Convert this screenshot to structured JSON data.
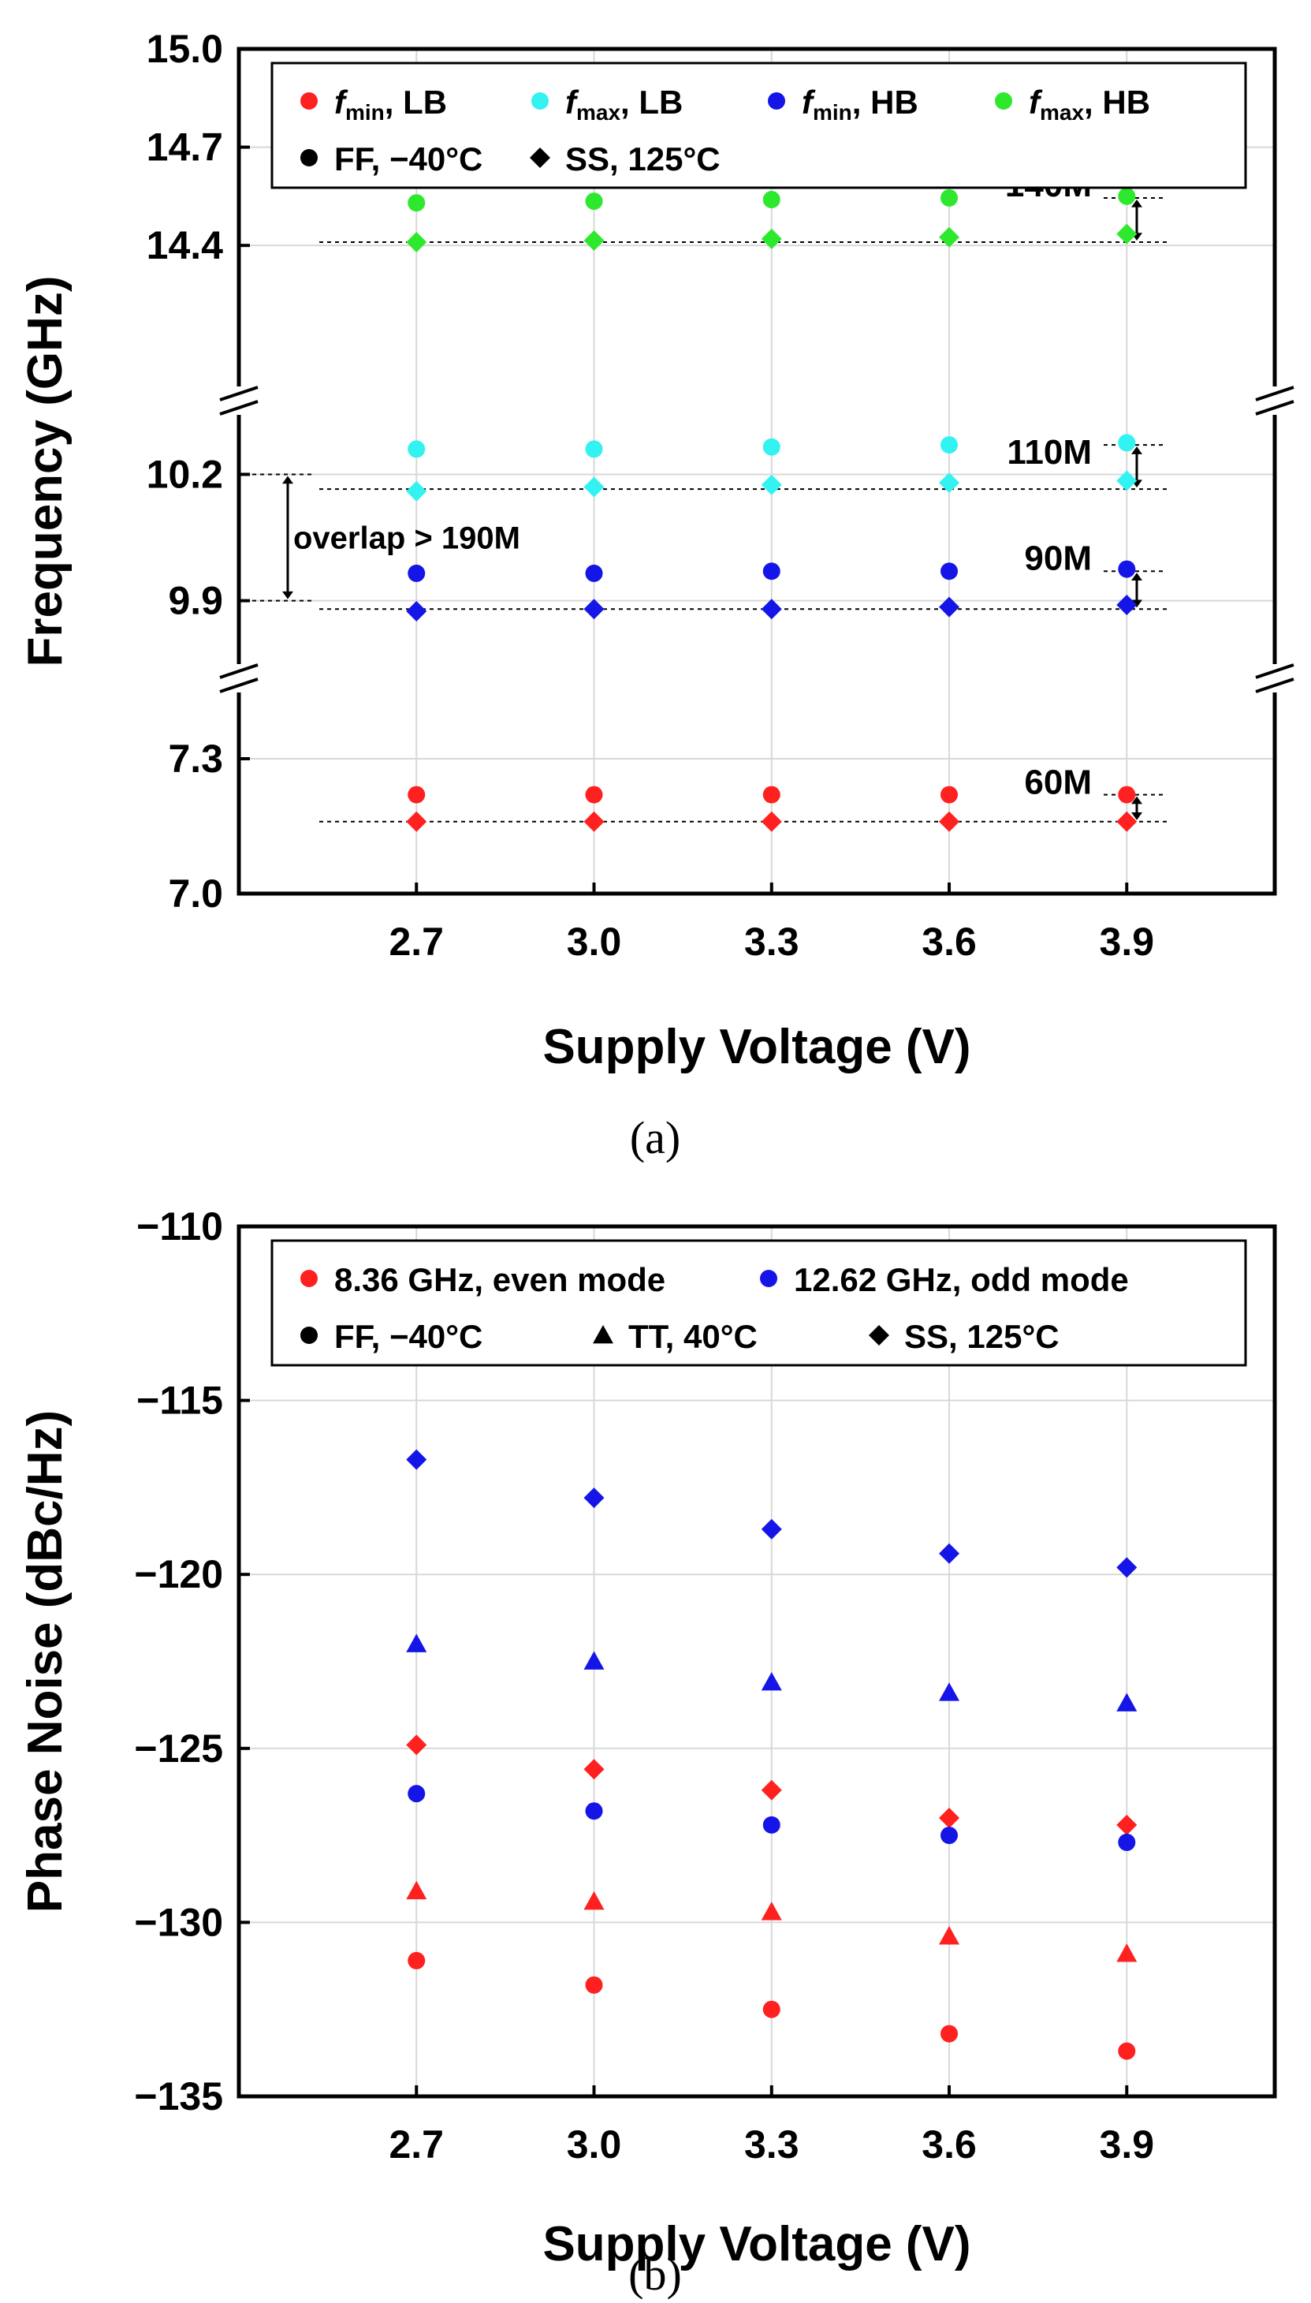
{
  "chart_data": [
    {
      "type": "scatter",
      "caption": "(a)",
      "xlabel": "Supply Voltage (V)",
      "ylabel": "Frequency (GHz)",
      "x": [
        2.7,
        3.0,
        3.3,
        3.6,
        3.9
      ],
      "x_tick_labels": [
        "2.7",
        "3.0",
        "3.3",
        "3.6",
        "3.9"
      ],
      "xlim": [
        2.4,
        4.15
      ],
      "y_axis_break": true,
      "y_segments": [
        {
          "ylim": [
            7.0,
            7.4
          ],
          "ticks": [
            7.0,
            7.3
          ],
          "tick_labels": [
            "7.0",
            "7.3"
          ]
        },
        {
          "ylim": [
            9.8,
            10.45
          ],
          "ticks": [
            9.9,
            10.2
          ],
          "tick_labels": [
            "9.9",
            "10.2"
          ]
        },
        {
          "ylim": [
            14.15,
            15.0
          ],
          "ticks": [
            14.4,
            14.7,
            15.0
          ],
          "tick_labels": [
            "14.4",
            "14.7",
            "15.0"
          ]
        }
      ],
      "grid": true,
      "legend_placement": "top",
      "legend": {
        "series": [
          {
            "var": "f",
            "sub": "min",
            "rest": ", LB",
            "color": "#ff2020"
          },
          {
            "var": "f",
            "sub": "max",
            "rest": ", LB",
            "color": "#33f2f2"
          },
          {
            "var": "f",
            "sub": "min",
            "rest": ", HB",
            "color": "#1515e8"
          },
          {
            "var": "f",
            "sub": "max",
            "rest": ", HB",
            "color": "#2ee82e"
          }
        ],
        "corners": [
          {
            "label": "FF, −40°C",
            "marker": "circle"
          },
          {
            "label": "SS, 125°C",
            "marker": "diamond"
          }
        ]
      },
      "series": [
        {
          "name": "fmin, LB · FF, −40°C",
          "color": "#ff2020",
          "marker": "circle",
          "values": [
            7.22,
            7.22,
            7.22,
            7.22,
            7.22
          ]
        },
        {
          "name": "fmin, LB · SS, 125°C",
          "color": "#ff2020",
          "marker": "diamond",
          "values": [
            7.16,
            7.16,
            7.16,
            7.16,
            7.16
          ]
        },
        {
          "name": "fmax, LB · FF, −40°C",
          "color": "#33f2f2",
          "marker": "circle",
          "values": [
            10.26,
            10.26,
            10.265,
            10.27,
            10.275
          ]
        },
        {
          "name": "fmax, LB · SS, 125°C",
          "color": "#33f2f2",
          "marker": "diamond",
          "values": [
            10.16,
            10.17,
            10.175,
            10.18,
            10.185
          ]
        },
        {
          "name": "fmin, HB · FF, −40°C",
          "color": "#1515e8",
          "marker": "circle",
          "values": [
            9.965,
            9.965,
            9.97,
            9.97,
            9.975
          ]
        },
        {
          "name": "fmin, HB · SS, 125°C",
          "color": "#1515e8",
          "marker": "diamond",
          "values": [
            9.875,
            9.88,
            9.88,
            9.885,
            9.89
          ]
        },
        {
          "name": "fmax, HB · FF, −40°C",
          "color": "#2ee82e",
          "marker": "circle",
          "values": [
            14.53,
            14.535,
            14.54,
            14.545,
            14.55
          ]
        },
        {
          "name": "fmax, HB · SS, 125°C",
          "color": "#2ee82e",
          "marker": "diamond",
          "values": [
            14.41,
            14.415,
            14.42,
            14.425,
            14.435
          ]
        }
      ],
      "annotations": [
        {
          "text": "140M",
          "y_top": 14.545,
          "y_bottom": 14.41
        },
        {
          "text": "110M",
          "y_top": 10.27,
          "y_bottom": 10.165
        },
        {
          "text": "90M",
          "y_top": 9.97,
          "y_bottom": 9.88
        },
        {
          "text": "60M",
          "y_top": 7.22,
          "y_bottom": 7.16
        },
        {
          "text": "overlap > 190M",
          "y_top": 10.2,
          "y_bottom": 9.9
        }
      ]
    },
    {
      "type": "scatter",
      "caption": "(b)",
      "xlabel": "Supply Voltage (V)",
      "ylabel": "Phase Noise (dBc/Hz)",
      "x": [
        2.7,
        3.0,
        3.3,
        3.6,
        3.9
      ],
      "x_tick_labels": [
        "2.7",
        "3.0",
        "3.3",
        "3.6",
        "3.9"
      ],
      "xlim": [
        2.4,
        4.15
      ],
      "ylim": [
        -135,
        -110
      ],
      "y_ticks": [
        -135,
        -130,
        -125,
        -120,
        -115,
        -110
      ],
      "y_tick_labels": [
        "−135",
        "−130",
        "−125",
        "−120",
        "−115",
        "−110"
      ],
      "grid": true,
      "legend_placement": "top",
      "legend": {
        "series": [
          {
            "label": "8.36 GHz, even mode",
            "color": "#ff2020"
          },
          {
            "label": "12.62 GHz, odd mode",
            "color": "#1515e8"
          }
        ],
        "corners": [
          {
            "label": "FF, −40°C",
            "marker": "circle"
          },
          {
            "label": "TT, 40°C",
            "marker": "triangle"
          },
          {
            "label": "SS, 125°C",
            "marker": "diamond"
          }
        ]
      },
      "series": [
        {
          "name": "8.36 GHz, even mode · FF, −40°C",
          "color": "#ff2020",
          "marker": "circle",
          "values": [
            -131.1,
            -131.8,
            -132.5,
            -133.2,
            -133.7
          ]
        },
        {
          "name": "8.36 GHz, even mode · TT, 40°C",
          "color": "#ff2020",
          "marker": "triangle",
          "values": [
            -129.1,
            -129.4,
            -129.7,
            -130.4,
            -130.9
          ]
        },
        {
          "name": "8.36 GHz, even mode · SS, 125°C",
          "color": "#ff2020",
          "marker": "diamond",
          "values": [
            -124.9,
            -125.6,
            -126.2,
            -127.0,
            -127.2
          ]
        },
        {
          "name": "12.62 GHz, odd mode · FF, −40°C",
          "color": "#1515e8",
          "marker": "circle",
          "values": [
            -126.3,
            -126.8,
            -127.2,
            -127.5,
            -127.7
          ]
        },
        {
          "name": "12.62 GHz, odd mode · TT, 40°C",
          "color": "#1515e8",
          "marker": "triangle",
          "values": [
            -122.0,
            -122.5,
            -123.1,
            -123.4,
            -123.7
          ]
        },
        {
          "name": "12.62 GHz, odd mode · SS, 125°C",
          "color": "#1515e8",
          "marker": "diamond",
          "values": [
            -116.7,
            -117.8,
            -118.7,
            -119.4,
            -119.8
          ]
        }
      ]
    }
  ]
}
